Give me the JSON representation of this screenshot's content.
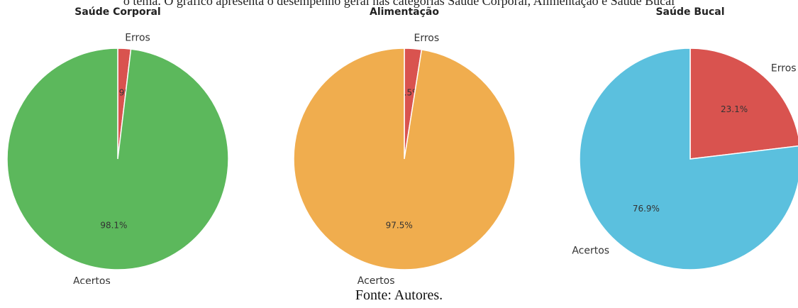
{
  "caption_top": "o tema. O gráfico apresenta o desempenho geral nas categorias Saúde Corporal, Alimentação e Saúde Bucal",
  "source": "Fonte: Autores.",
  "colors": {
    "erros": "#d9534f",
    "saude_corporal": "#5cb85c",
    "alimentacao": "#f0ad4e",
    "saude_bucal": "#5bc0de"
  },
  "chart_data": [
    {
      "type": "pie",
      "title": "Saúde Corporal",
      "slices": [
        {
          "label": "Erros",
          "value": 1.9,
          "pct_label": "1.9%",
          "color": "#d9534f"
        },
        {
          "label": "Acertos",
          "value": 98.1,
          "pct_label": "98.1%",
          "color": "#5cb85c"
        }
      ]
    },
    {
      "type": "pie",
      "title": "Alimentação",
      "slices": [
        {
          "label": "Erros",
          "value": 2.5,
          "pct_label": "2.5%",
          "color": "#d9534f"
        },
        {
          "label": "Acertos",
          "value": 97.5,
          "pct_label": "97.5%",
          "color": "#f0ad4e"
        }
      ]
    },
    {
      "type": "pie",
      "title": "Saúde Bucal",
      "slices": [
        {
          "label": "Erros",
          "value": 23.1,
          "pct_label": "23.1%",
          "color": "#d9534f"
        },
        {
          "label": "Acertos",
          "value": 76.9,
          "pct_label": "76.9%",
          "color": "#5bc0de"
        }
      ]
    }
  ]
}
